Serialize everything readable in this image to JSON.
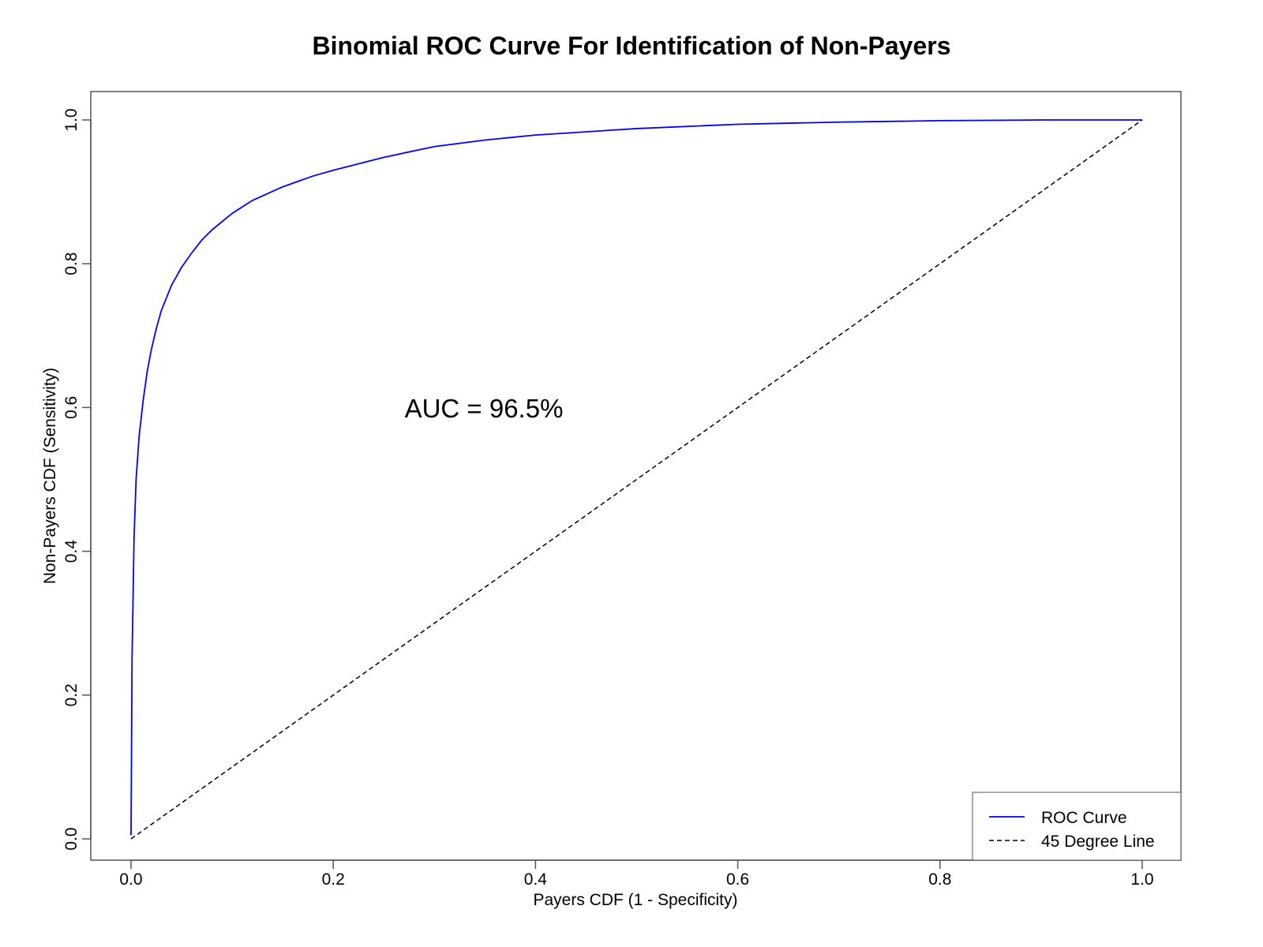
{
  "chart_data": {
    "type": "line",
    "title": "Binomial ROC Curve For Identification of Non-Payers",
    "xlabel": "Payers CDF (1 - Specificity)",
    "ylabel": "Non-Payers CDF (Sensitivity)",
    "xlim": [
      0,
      1
    ],
    "ylim": [
      0,
      1
    ],
    "x_ticks": [
      "0.0",
      "0.2",
      "0.4",
      "0.6",
      "0.8",
      "1.0"
    ],
    "y_ticks": [
      "0.0",
      "0.2",
      "0.4",
      "0.6",
      "0.8",
      "1.0"
    ],
    "grid": false,
    "legend_position": "bottom-right",
    "annotation": "AUC = 96.5%",
    "series": [
      {
        "name": "ROC Curve",
        "color": "#0000ff",
        "style": "solid",
        "x": [
          0,
          0.001,
          0.003,
          0.005,
          0.008,
          0.012,
          0.016,
          0.02,
          0.025,
          0.03,
          0.04,
          0.05,
          0.06,
          0.07,
          0.08,
          0.1,
          0.12,
          0.15,
          0.18,
          0.2,
          0.25,
          0.3,
          0.35,
          0.4,
          0.5,
          0.6,
          0.7,
          0.8,
          0.9,
          1.0
        ],
        "y": [
          0.005,
          0.25,
          0.42,
          0.5,
          0.56,
          0.61,
          0.65,
          0.68,
          0.71,
          0.735,
          0.77,
          0.795,
          0.815,
          0.833,
          0.847,
          0.87,
          0.888,
          0.907,
          0.922,
          0.93,
          0.948,
          0.963,
          0.972,
          0.979,
          0.988,
          0.994,
          0.997,
          0.999,
          1.0,
          1.0
        ]
      },
      {
        "name": "45 Degree Line",
        "color": "#000000",
        "style": "dashed",
        "x": [
          0,
          1
        ],
        "y": [
          0,
          1
        ]
      }
    ]
  }
}
